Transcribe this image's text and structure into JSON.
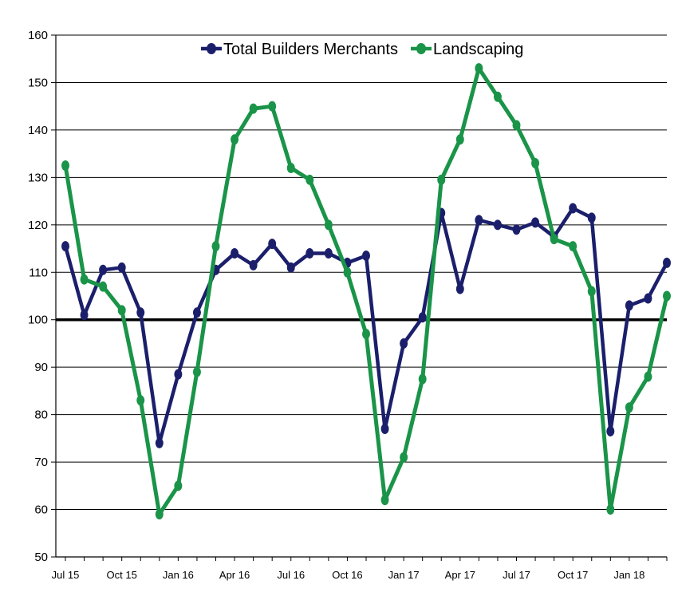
{
  "chart_data": {
    "type": "line",
    "title": "",
    "xlabel": "",
    "ylabel": "",
    "ylim": [
      50,
      160
    ],
    "yticks": [
      50,
      60,
      70,
      80,
      90,
      100,
      110,
      120,
      130,
      140,
      150,
      160
    ],
    "reference_line": 100,
    "grid": "horizontal",
    "legend_position": "top",
    "x": [
      "Jul 15",
      "Aug 15",
      "Sep 15",
      "Oct 15",
      "Nov 15",
      "Dec 15",
      "Jan 16",
      "Feb 16",
      "Mar 16",
      "Apr 16",
      "May 16",
      "Jun 16",
      "Jul 16",
      "Aug 16",
      "Sep 16",
      "Oct 16",
      "Nov 16",
      "Dec 16",
      "Jan 17",
      "Feb 17",
      "Mar 17",
      "Apr 17",
      "May 17",
      "Jun 17",
      "Jul 17",
      "Aug 17",
      "Sep 17",
      "Oct 17",
      "Nov 17",
      "Dec 17",
      "Jan 18",
      "Feb 18",
      "Mar 18"
    ],
    "x_tick_labels": [
      {
        "index": 0,
        "label": "Jul 15"
      },
      {
        "index": 3,
        "label": "Oct 15"
      },
      {
        "index": 6,
        "label": "Jan 16"
      },
      {
        "index": 9,
        "label": "Apr 16"
      },
      {
        "index": 12,
        "label": "Jul 16"
      },
      {
        "index": 15,
        "label": "Oct 16"
      },
      {
        "index": 18,
        "label": "Jan 17"
      },
      {
        "index": 21,
        "label": "Apr 17"
      },
      {
        "index": 24,
        "label": "Jul 17"
      },
      {
        "index": 27,
        "label": "Oct 17"
      },
      {
        "index": 30,
        "label": "Jan 18"
      }
    ],
    "series": [
      {
        "name": "Total Builders Merchants",
        "color": "#1b1f6b",
        "values": [
          115.5,
          101,
          110.5,
          111,
          101.5,
          74,
          88.5,
          101.5,
          110.5,
          114,
          111.5,
          116,
          111,
          114,
          114,
          112,
          113.5,
          77,
          95,
          100.5,
          122.5,
          106.5,
          121,
          120,
          119,
          120.5,
          117.5,
          123.5,
          121.5,
          76.5,
          103,
          104.5,
          112
        ]
      },
      {
        "name": "Landscaping",
        "color": "#1a9448",
        "values": [
          132.5,
          108.5,
          107,
          102,
          83,
          59,
          65,
          89,
          115.5,
          138,
          144.5,
          145,
          132,
          129.5,
          120,
          110,
          97,
          62,
          71,
          87.5,
          129.5,
          138,
          153,
          147,
          141,
          133,
          117,
          115.5,
          106,
          60,
          81.5,
          88,
          105
        ]
      }
    ]
  }
}
